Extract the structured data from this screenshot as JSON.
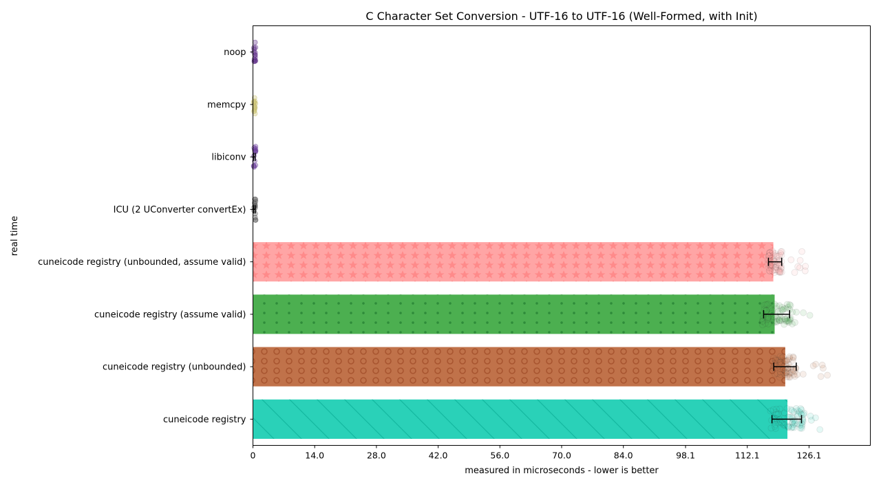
{
  "chart_data": {
    "type": "bar",
    "orientation": "horizontal",
    "title": "C Character Set Conversion - UTF-16 to UTF-16 (Well-Formed, with Init)",
    "xlabel": "measured in microseconds - lower is better",
    "ylabel": "real time",
    "xlim": [
      0,
      140
    ],
    "x_ticks": [
      0,
      14.0,
      28.0,
      42.0,
      56.0,
      70.0,
      84.0,
      98.1,
      112.1,
      126.1
    ],
    "x_tick_labels": [
      "0",
      "14.0",
      "28.0",
      "42.0",
      "56.0",
      "70.0",
      "84.0",
      "98.1",
      "112.1",
      "126.1"
    ],
    "grid": false,
    "categories": [
      "noop",
      "memcpy",
      "libiconv",
      "ICU (2 UConverter convertEx)",
      "cuneicode registry (unbounded, assume valid)",
      "cuneicode registry (assume valid)",
      "cuneicode registry (unbounded)",
      "cuneicode registry"
    ],
    "values": [
      0.05,
      0.05,
      0.3,
      0.3,
      118.0,
      118.3,
      120.7,
      121.2
    ],
    "error_low": [
      0,
      0,
      0.1,
      0.1,
      116.9,
      115.8,
      118.1,
      117.7
    ],
    "error_high": [
      0,
      0,
      0.5,
      0.5,
      119.9,
      121.7,
      123.2,
      124.4
    ],
    "colors": [
      "#5b2a86",
      "#c8c070",
      "#6a3d9a",
      "#555555",
      "#ffa5a5",
      "#4caf50",
      "#c0724a",
      "#2ad1b8"
    ],
    "hatch_colors": [
      "#5b2a86",
      "#c8c070",
      "#6a3d9a",
      "#555555",
      "#ff8a8a",
      "#2e8b3a",
      "#a85530",
      "#14b8a0"
    ],
    "hatches": [
      "none",
      "none",
      "none",
      "none",
      "stars",
      "dots",
      "circles",
      "diagonal"
    ],
    "points_spread": [
      0.3,
      0.3,
      0.6,
      0.6,
      6,
      7,
      8,
      9
    ],
    "points_max": [
      0.3,
      0.3,
      0.8,
      0.8,
      126,
      126.5,
      132.8,
      129.4
    ]
  }
}
